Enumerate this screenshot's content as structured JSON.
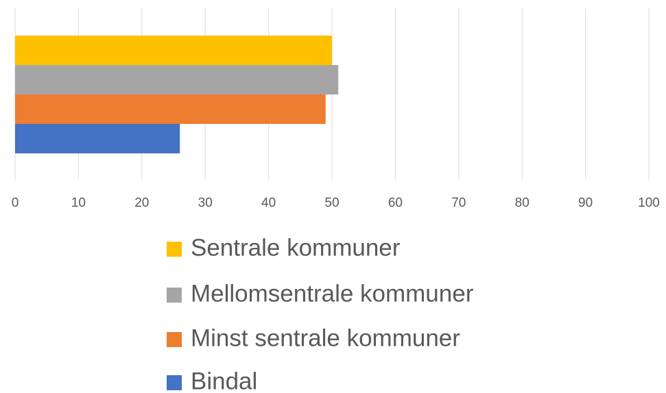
{
  "chart_data": {
    "type": "bar",
    "orientation": "horizontal",
    "categories": [
      null
    ],
    "series": [
      {
        "name": "Sentrale kommuner",
        "color": "#ffc000",
        "values": [
          50
        ]
      },
      {
        "name": "Mellomsentrale kommuner",
        "color": "#a5a5a5",
        "values": [
          51
        ]
      },
      {
        "name": "Minst sentrale kommuner",
        "color": "#ed7d31",
        "values": [
          49
        ]
      },
      {
        "name": "Bindal",
        "color": "#4472c4",
        "values": [
          26
        ]
      }
    ],
    "xlim": [
      0,
      100
    ],
    "xticks": [
      0,
      10,
      20,
      30,
      40,
      50,
      60,
      70,
      80,
      90,
      100
    ],
    "grid": true,
    "legend": "bottom"
  }
}
